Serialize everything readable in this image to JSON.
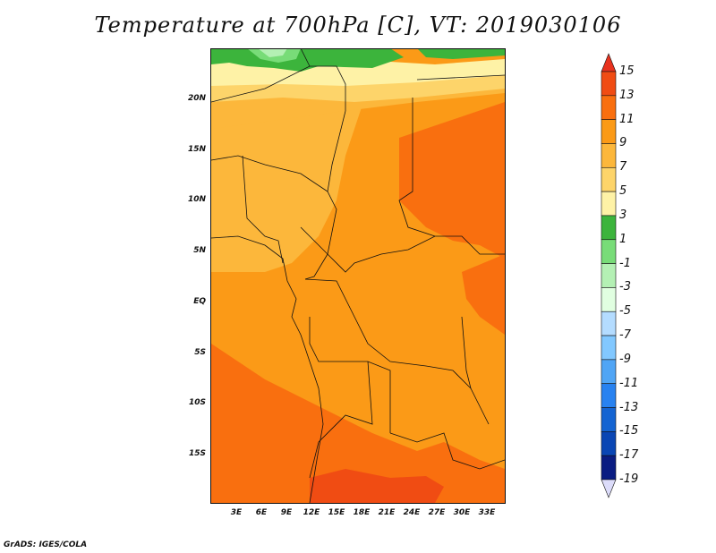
{
  "title": "Temperature at 700hPa [C], VT: 2019030106",
  "footer": "GrADS: IGES/COLA",
  "lat_labels": [
    "20N",
    "15N",
    "10N",
    "5N",
    "EQ",
    "5S",
    "10S",
    "15S"
  ],
  "lon_labels": [
    "3E",
    "6E",
    "9E",
    "12E",
    "15E",
    "18E",
    "21E",
    "24E",
    "27E",
    "30E",
    "33E"
  ],
  "colorbar": {
    "levels": [
      "15",
      "13",
      "11",
      "9",
      "7",
      "5",
      "3",
      "1",
      "-1",
      "-3",
      "-5",
      "-7",
      "-9",
      "-11",
      "-13",
      "-15",
      "-17",
      "-19"
    ],
    "colors": [
      "#e8321e",
      "#f04c13",
      "#f96f0f",
      "#fb9a17",
      "#fcb73b",
      "#fdd46a",
      "#fef2a6",
      "#3cb43c",
      "#78dc78",
      "#b4f0b4",
      "#e1ffe1",
      "#b4dcff",
      "#82c8ff",
      "#50a5f5",
      "#2882f0",
      "#1464d2",
      "#0a46b4",
      "#0a1c82",
      "#dcdcfa"
    ]
  }
}
